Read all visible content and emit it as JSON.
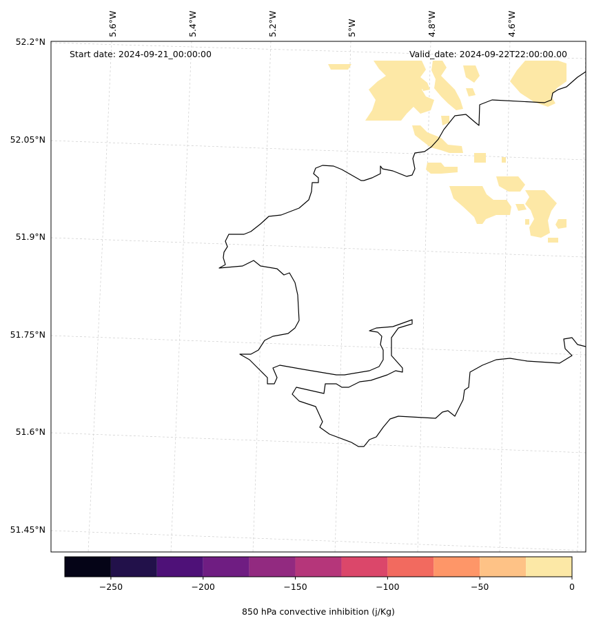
{
  "header": {
    "start_date": "Start date: 2024-09-21_00:00:00",
    "valid_date": "Valid_date: 2024-09-22T22:00:00.00"
  },
  "axes": {
    "lat_labels": [
      "52.2°N",
      "52.05°N",
      "51.9°N",
      "51.75°N",
      "51.6°N",
      "51.45°N"
    ],
    "lon_labels": [
      "5.6°W",
      "5.4°W",
      "5.2°W",
      "5°W",
      "4.8°W",
      "4.6°W"
    ],
    "gridlines": true
  },
  "colorbar": {
    "label": "850 hPa convective inhibition (j/Kg)",
    "ticks": [
      "−250",
      "−200",
      "−150",
      "−100",
      "−50",
      "0"
    ],
    "colors": [
      "#050417",
      "#22114a",
      "#4e1178",
      "#6f1d82",
      "#922a80",
      "#b5367a",
      "#db476a",
      "#f26a5f",
      "#fe9668",
      "#fec286",
      "#fce8a6"
    ],
    "boundaries": [
      -275,
      -250,
      -225,
      -200,
      -175,
      -150,
      -125,
      -100,
      -75,
      -50,
      -25,
      0
    ]
  },
  "field": {
    "fill_color": "#fde8a6",
    "coast_color": "#000000"
  }
}
